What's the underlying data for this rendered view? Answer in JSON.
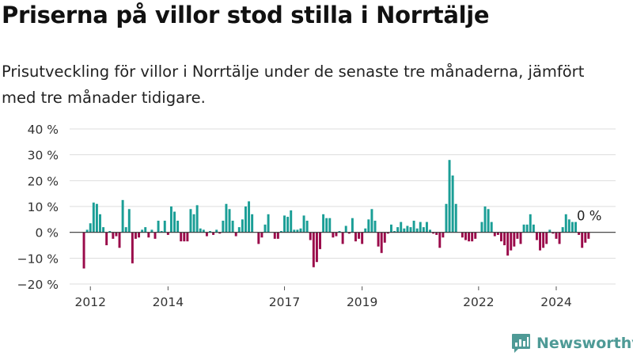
{
  "title": "Priserna på villor stod stilla i Norrtälje",
  "subtitle": "Prisutveckling för villor i Norrtälje under de senaste tre månaderna, jämfört med tre månader tidigare.",
  "brand": {
    "name": "Newsworthy",
    "color": "#4e9a96"
  },
  "colors": {
    "positive": "#1a9e96",
    "negative": "#9a0a4a",
    "gridline": "#dddddd",
    "zeroline": "#333333"
  },
  "chart_data": {
    "type": "bar",
    "x_unit": "month",
    "x_start": "2011-11",
    "ylim": [
      -20,
      40
    ],
    "yticks": [
      -20,
      -10,
      0,
      10,
      20,
      30,
      40
    ],
    "ytick_labels": [
      "−20 %",
      "−10 %",
      "0 %",
      "10 %",
      "20 %",
      "30 %",
      "40 %"
    ],
    "xtick_labels": [
      {
        "label": "2012",
        "date": "2012-01"
      },
      {
        "label": "2014",
        "date": "2014-01"
      },
      {
        "label": "2017",
        "date": "2017-01"
      },
      {
        "label": "2019",
        "date": "2019-01"
      },
      {
        "label": "2022",
        "date": "2022-01"
      },
      {
        "label": "2024",
        "date": "2024-01"
      }
    ],
    "grid": true,
    "last_value_label": "0 %",
    "values": [
      -14,
      1,
      3.5,
      11.5,
      11,
      7,
      2,
      -5,
      0.5,
      -2.5,
      -1.5,
      -6,
      12.5,
      2,
      9,
      -12,
      -2.5,
      -2,
      1,
      2,
      -2,
      1,
      -2.5,
      4.5,
      0.5,
      4.5,
      -1,
      10,
      8,
      4.5,
      -3.5,
      -3.5,
      -3.5,
      9,
      7,
      10.5,
      1.5,
      1,
      -1.5,
      0.5,
      -1,
      1,
      -0.5,
      4.5,
      11,
      9,
      4.5,
      -1.5,
      2,
      5,
      10,
      12,
      7,
      0,
      -4.5,
      -2,
      3,
      7,
      0,
      -2.5,
      -2.5,
      0.5,
      6.5,
      6,
      8.5,
      1,
      1,
      1.5,
      6.5,
      4.5,
      -3,
      -13.5,
      -11.5,
      -6.5,
      7,
      5.5,
      5.5,
      -2,
      -1.5,
      0.5,
      -4.5,
      2.5,
      -0.5,
      5.5,
      -3.5,
      -2.5,
      -4.5,
      1.5,
      5,
      9,
      4.5,
      -5.5,
      -8,
      -4,
      -0.5,
      3,
      0.5,
      2,
      4,
      1.5,
      2.5,
      2,
      4.5,
      1.5,
      4,
      2,
      4,
      1,
      -0.5,
      -1,
      -6,
      -2,
      11,
      28,
      22,
      11,
      0,
      -2,
      -3,
      -3.5,
      -3.5,
      -2.5,
      0,
      4,
      10,
      9,
      4,
      -1.5,
      -1,
      -3.5,
      -5,
      -9,
      -7,
      -5.5,
      -2.5,
      -4.5,
      3,
      3,
      7,
      3,
      -3,
      -7,
      -6,
      -4.5,
      1,
      -0.5,
      -2.5,
      -4.5,
      2,
      7,
      5,
      4,
      4,
      -1,
      -6,
      -4,
      -2.5,
      0
    ]
  }
}
